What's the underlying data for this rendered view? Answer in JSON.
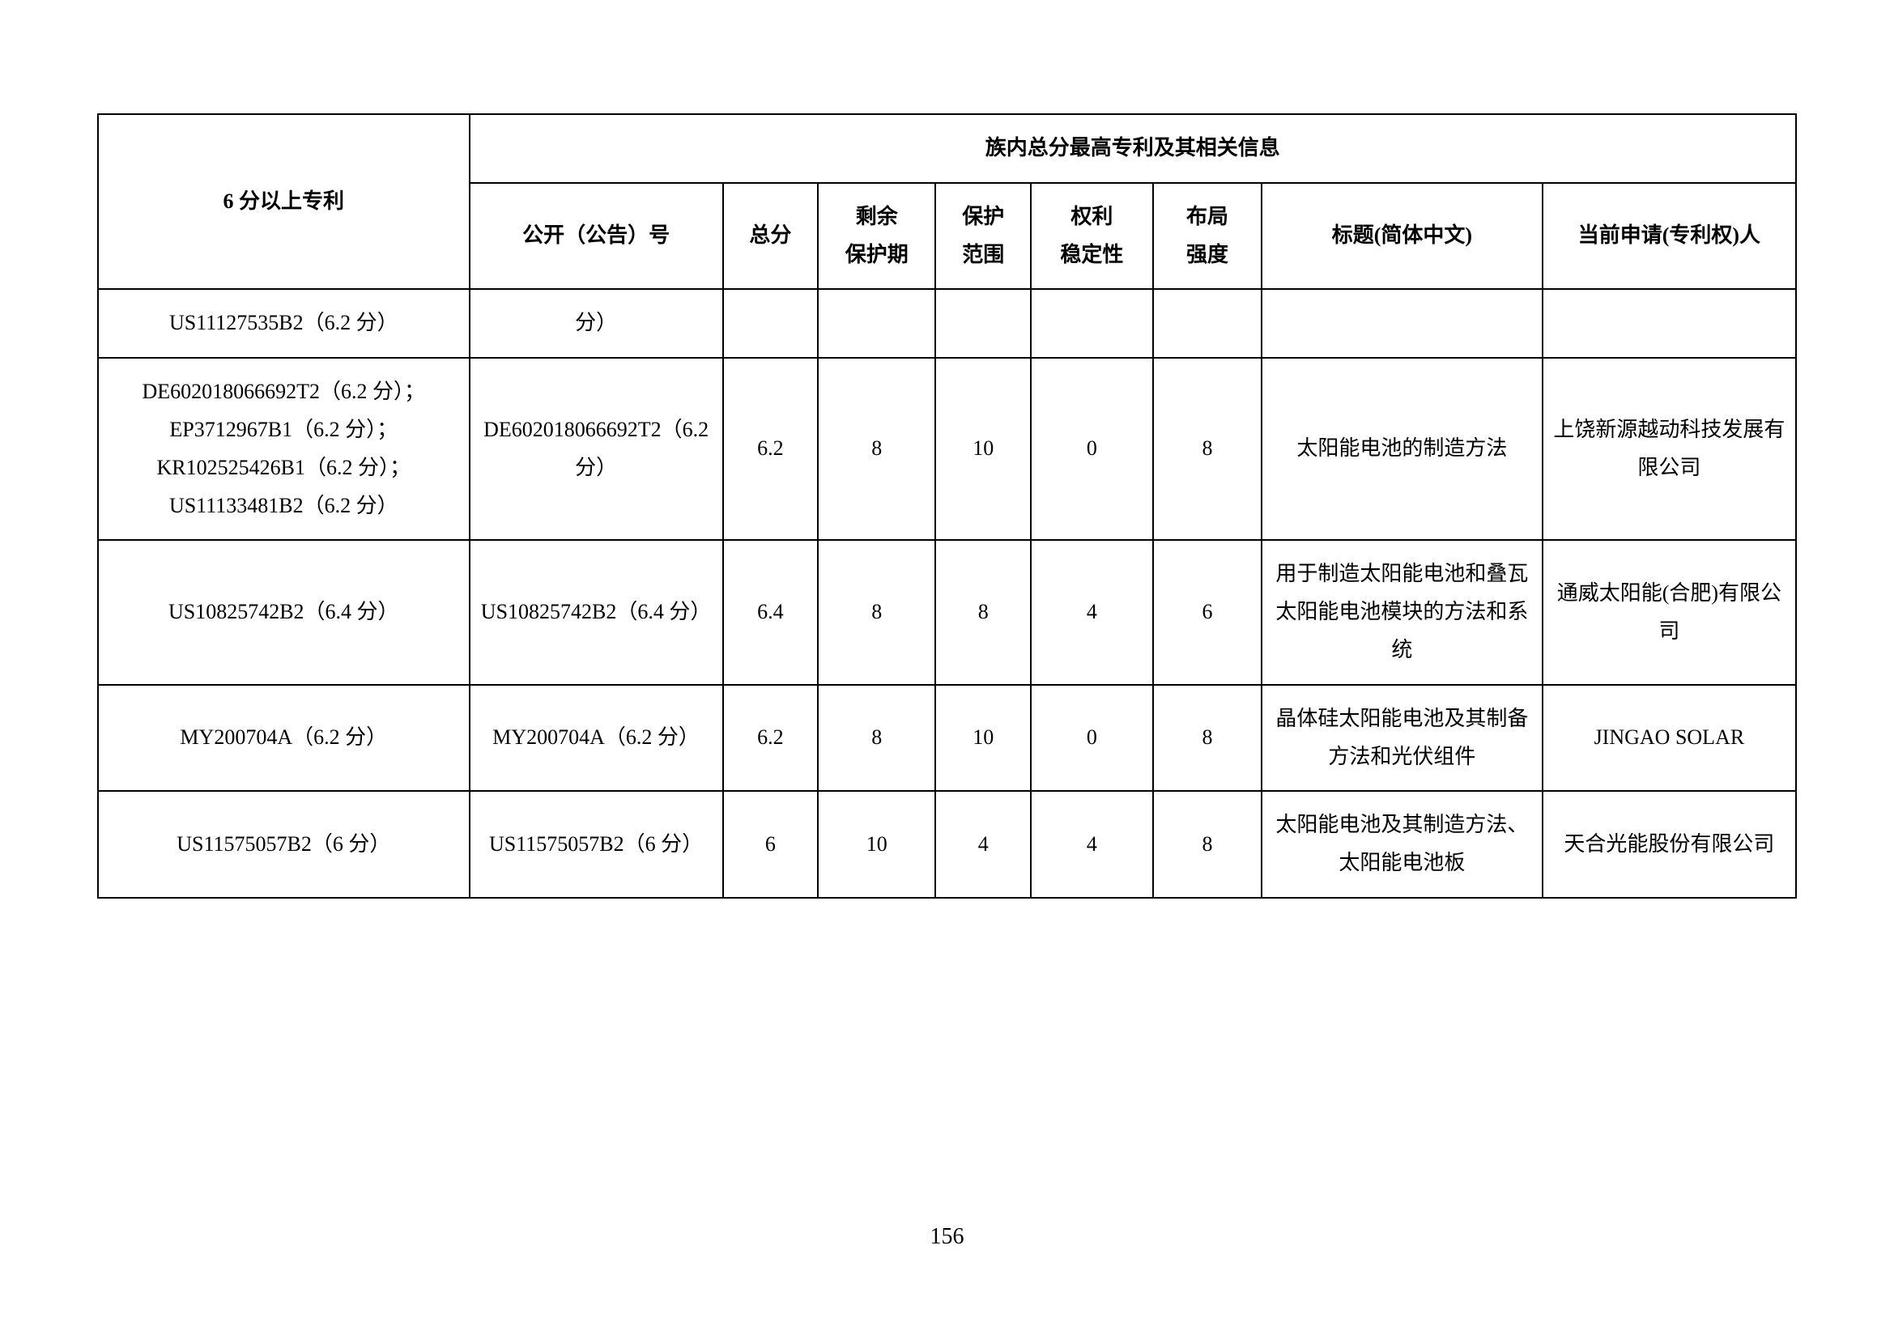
{
  "table": {
    "header": {
      "col_patents": "6 分以上专利",
      "group_label": "族内总分最高专利及其相关信息",
      "col_pubno": "公开（公告）号",
      "col_score": "总分",
      "col_remain_l1": "剩余",
      "col_remain_l2": "保护期",
      "col_protect_l1": "保护",
      "col_protect_l2": "范围",
      "col_stability_l1": "权利",
      "col_stability_l2": "稳定性",
      "col_layout_l1": "布局",
      "col_layout_l2": "强度",
      "col_title": "标题(简体中文)",
      "col_applicant": "当前申请(专利权)人"
    },
    "rows": [
      {
        "patents": "US11127535B2（6.2 分）",
        "pubno": "分）",
        "score": "",
        "remain": "",
        "protect": "",
        "stability": "",
        "layout": "",
        "title": "",
        "applicant": ""
      },
      {
        "patents": "DE602018066692T2（6.2 分）；EP3712967B1（6.2 分）；KR102525426B1（6.2 分）；US11133481B2（6.2 分）",
        "pubno": "DE602018066692T2（6.2 分）",
        "score": "6.2",
        "remain": "8",
        "protect": "10",
        "stability": "0",
        "layout": "8",
        "title": "太阳能电池的制造方法",
        "applicant": "上饶新源越动科技发展有限公司"
      },
      {
        "patents": "US10825742B2（6.4 分）",
        "pubno": "US10825742B2（6.4 分）",
        "score": "6.4",
        "remain": "8",
        "protect": "8",
        "stability": "4",
        "layout": "6",
        "title": "用于制造太阳能电池和叠瓦太阳能电池模块的方法和系统",
        "applicant": "通威太阳能(合肥)有限公司"
      },
      {
        "patents": "MY200704A（6.2 分）",
        "pubno": "MY200704A（6.2 分）",
        "score": "6.2",
        "remain": "8",
        "protect": "10",
        "stability": "0",
        "layout": "8",
        "title": "晶体硅太阳能电池及其制备方法和光伏组件",
        "applicant": "JINGAO SOLAR"
      },
      {
        "patents": "US11575057B2（6 分）",
        "pubno": "US11575057B2（6 分）",
        "score": "6",
        "remain": "10",
        "protect": "4",
        "stability": "4",
        "layout": "8",
        "title": "太阳能电池及其制造方法、太阳能电池板",
        "applicant": "天合光能股份有限公司"
      }
    ]
  },
  "page_number": "156",
  "colors": {
    "border": "#000000",
    "background": "#ffffff",
    "text": "#000000"
  }
}
